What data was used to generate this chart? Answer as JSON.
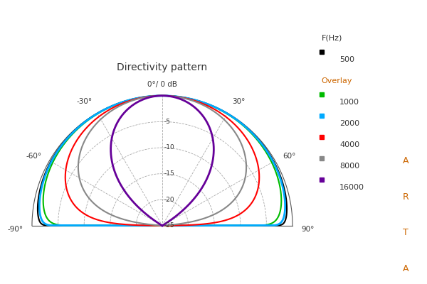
{
  "title": "Directivity pattern",
  "center_label": "0°/ 0 dB",
  "db_rings": [
    -5,
    -10,
    -15,
    -20,
    -25
  ],
  "db_min": -25,
  "background_color": "#ffffff",
  "grid_color": "#aaaaaa",
  "baseline_color": "#555555",
  "angle_labels": {
    "-90": "-90°",
    "-60": "-60°",
    "-30": "-30°",
    "30": "30°",
    "60": "60°",
    "90": "90°"
  },
  "legend_title": "F(Hz)",
  "legend_main_label": "500",
  "legend_main_color": "#000000",
  "legend_overlay_label": "Overlay",
  "legend_overlay_color": "#cc6600",
  "legend_entries": [
    {
      "label": "1000",
      "color": "#00bb00"
    },
    {
      "label": "2000",
      "color": "#00aaff"
    },
    {
      "label": "4000",
      "color": "#ff0000"
    },
    {
      "label": "8000",
      "color": "#888888"
    },
    {
      "label": "16000",
      "color": "#660099"
    }
  ],
  "arta_color": "#cc6600",
  "curves": [
    {
      "freq": "500",
      "color": "#000000",
      "lw": 1.5,
      "n": 0.05
    },
    {
      "freq": "1000",
      "color": "#00bb00",
      "lw": 1.5,
      "n": 0.12
    },
    {
      "freq": "2000",
      "color": "#00aaff",
      "lw": 2.0,
      "n": 0.07
    },
    {
      "freq": "4000",
      "color": "#ff0000",
      "lw": 1.5,
      "n": 0.6
    },
    {
      "freq": "8000",
      "color": "#888888",
      "lw": 1.5,
      "n": 1.1
    },
    {
      "freq": "16000",
      "color": "#660099",
      "lw": 2.0,
      "n": 4.5
    }
  ]
}
